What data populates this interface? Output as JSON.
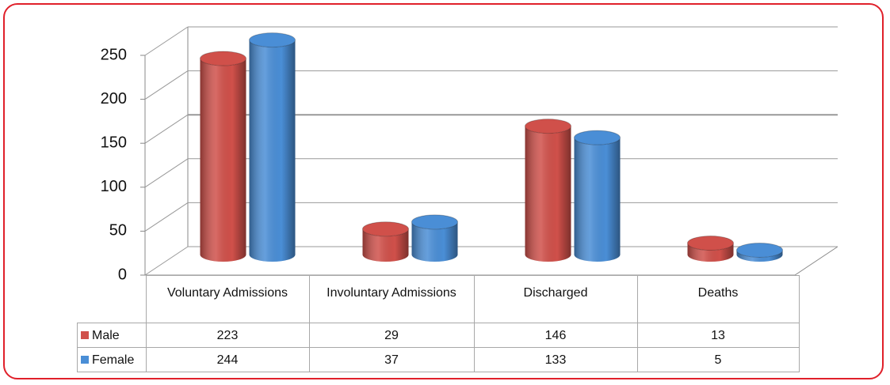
{
  "chart_data": {
    "type": "bar3d",
    "categories": [
      "Voluntary Admissions",
      "Involuntary Admissions",
      "Discharged",
      "Deaths"
    ],
    "series": [
      {
        "name": "Male",
        "color": "#d0504a",
        "values": [
          223,
          29,
          146,
          13
        ]
      },
      {
        "name": "Female",
        "color": "#4a8ed6",
        "values": [
          244,
          37,
          133,
          5
        ]
      }
    ],
    "ylim": [
      0,
      250
    ],
    "yticks": [
      0,
      50,
      100,
      150,
      200,
      250
    ],
    "grid": true,
    "data_table": true
  }
}
